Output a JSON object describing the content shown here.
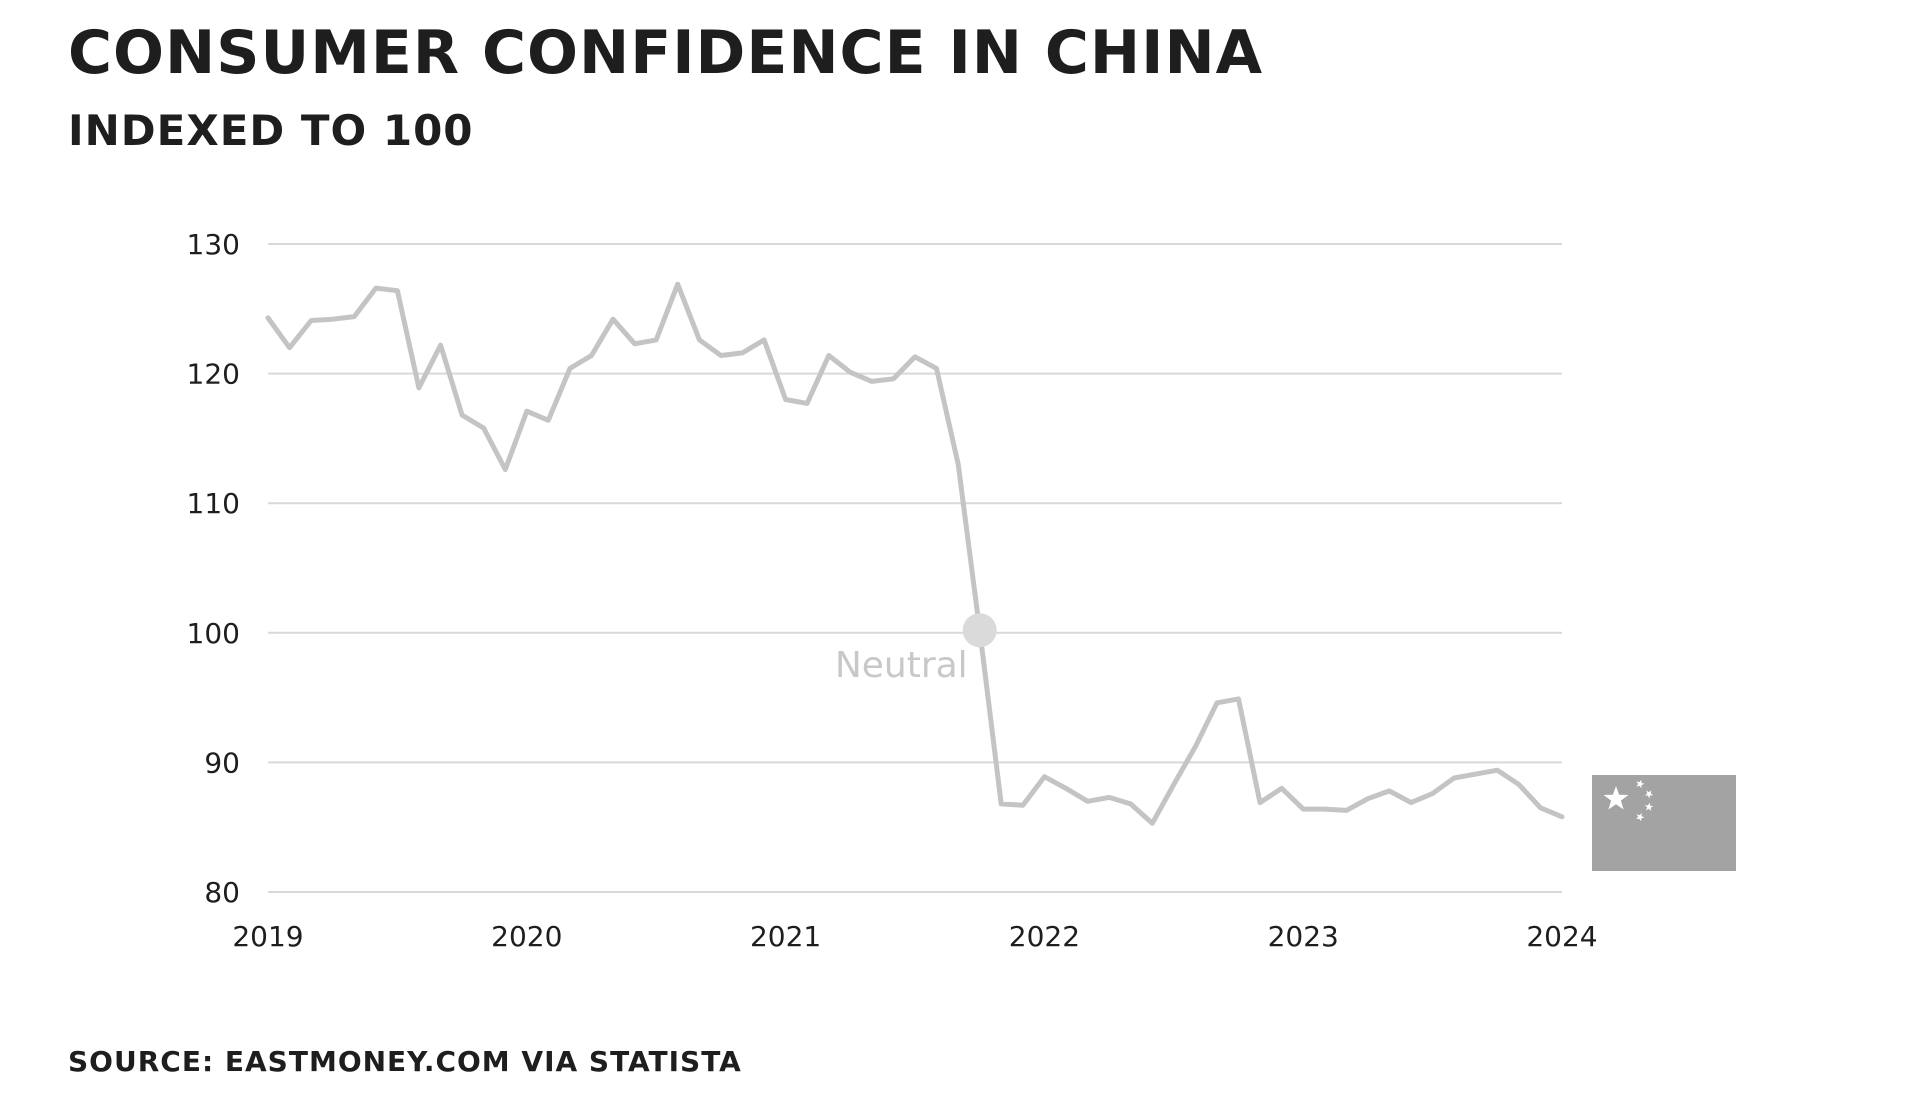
{
  "chart_data": {
    "type": "line",
    "title": "CONSUMER CONFIDENCE IN CHINA",
    "subtitle": "INDEXED TO 100",
    "source": "SOURCE: EASTMONEY.COM VIA STATISTA",
    "xlabel": "",
    "ylabel": "",
    "xlim": [
      2019,
      2024
    ],
    "ylim": [
      80,
      130
    ],
    "yticks": [
      80,
      90,
      100,
      110,
      120,
      130
    ],
    "xticks": [
      2019,
      2020,
      2021,
      2022,
      2023,
      2024
    ],
    "grid": true,
    "legend": "none",
    "series": [
      {
        "color": "#c4c4c4",
        "x": [
          2019.0,
          2019.083,
          2019.167,
          2019.25,
          2019.333,
          2019.417,
          2019.5,
          2019.583,
          2019.667,
          2019.75,
          2019.833,
          2019.917,
          2020.0,
          2020.083,
          2020.167,
          2020.25,
          2020.333,
          2020.417,
          2020.5,
          2020.583,
          2020.667,
          2020.75,
          2020.833,
          2020.917,
          2021.0,
          2021.083,
          2021.167,
          2021.25,
          2021.333,
          2021.417,
          2021.5,
          2021.583,
          2021.667,
          2021.75,
          2021.833,
          2021.917,
          2022.0,
          2022.083,
          2022.167,
          2022.25,
          2022.333,
          2022.417,
          2022.5,
          2022.583,
          2022.667,
          2022.75,
          2022.833,
          2022.917,
          2023.0,
          2023.083,
          2023.167,
          2023.25,
          2023.333,
          2023.417,
          2023.5,
          2023.583,
          2023.667,
          2023.75,
          2023.833,
          2023.917,
          2024.0
        ],
        "values": [
          124.3,
          122.0,
          124.1,
          124.2,
          124.4,
          126.6,
          126.4,
          118.9,
          122.2,
          116.8,
          115.8,
          112.6,
          117.1,
          116.4,
          120.4,
          121.4,
          124.2,
          122.3,
          122.6,
          126.9,
          122.6,
          121.4,
          121.6,
          122.6,
          118.0,
          117.7,
          121.4,
          120.1,
          119.4,
          119.6,
          121.3,
          120.4,
          113.0,
          100.2,
          86.8,
          86.7,
          88.9,
          88.0,
          87.0,
          87.3,
          86.8,
          85.3,
          88.3,
          91.2,
          94.6,
          94.9,
          86.9,
          88.0,
          86.4,
          86.4,
          86.3,
          87.2,
          87.8,
          86.9,
          87.6,
          88.8,
          89.1,
          89.4,
          88.3,
          86.5,
          85.8
        ]
      }
    ],
    "annotations": [
      {
        "x": 2021.75,
        "y": 100.2,
        "label": "Neutral"
      }
    ]
  },
  "flag": {
    "name": "china-flag-icon",
    "color": "#a3a3a3",
    "star_color": "#ffffff"
  },
  "colors": {
    "grid": "#d9d9d9",
    "line": "#c4c4c4",
    "marker": "#dadada",
    "text": "#1e1e1e"
  }
}
